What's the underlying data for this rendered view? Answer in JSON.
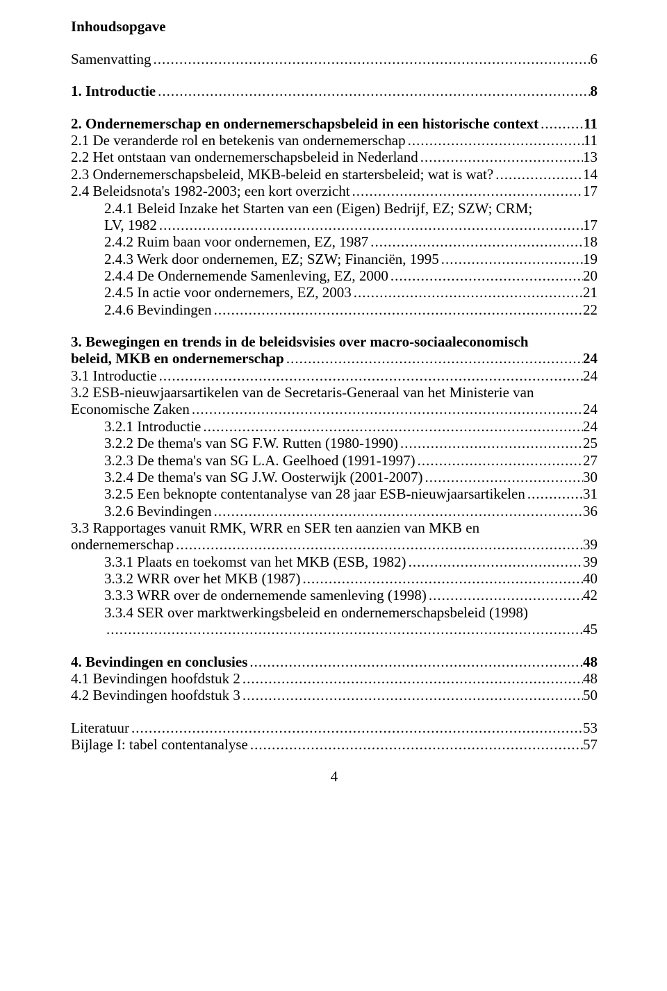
{
  "title": "Inhoudsopgave",
  "page_number": "4",
  "toc": [
    {
      "type": "line",
      "bold": false,
      "indent": 0,
      "label": "Samenvatting",
      "page": "6",
      "gap_after": true
    },
    {
      "type": "line",
      "bold": true,
      "indent": 0,
      "label": "1. Introductie",
      "page": "8",
      "gap_after": true
    },
    {
      "type": "line",
      "bold": true,
      "indent": 0,
      "label": "2. Ondernemerschap en ondernemerschapsbeleid in een historische context",
      "page": "11"
    },
    {
      "type": "line",
      "bold": false,
      "indent": 0,
      "label": "2.1 De veranderde rol en betekenis van ondernemerschap",
      "page": "11"
    },
    {
      "type": "line",
      "bold": false,
      "indent": 0,
      "label": "2.2 Het ontstaan van ondernemerschapsbeleid in Nederland",
      "page": "13"
    },
    {
      "type": "line",
      "bold": false,
      "indent": 0,
      "label": "2.3 Ondernemerschapsbeleid, MKB-beleid en startersbeleid; wat is wat?",
      "page": "14"
    },
    {
      "type": "line",
      "bold": false,
      "indent": 0,
      "label": "2.4 Beleidsnota's 1982-2003; een kort overzicht",
      "page": "17"
    },
    {
      "type": "wrap",
      "bold": false,
      "indent": 1,
      "label_first": "2.4.1 Beleid Inzake het Starten van een (Eigen) Bedrijf, EZ; SZW; CRM;",
      "label_last": "LV, 1982",
      "page": "17"
    },
    {
      "type": "line",
      "bold": false,
      "indent": 1,
      "label": "2.4.2 Ruim baan voor ondernemen, EZ, 1987",
      "page": "18"
    },
    {
      "type": "line",
      "bold": false,
      "indent": 1,
      "label": "2.4.3 Werk door ondernemen, EZ; SZW; Financiën, 1995",
      "page": "19"
    },
    {
      "type": "line",
      "bold": false,
      "indent": 1,
      "label": "2.4.4 De Ondernemende Samenleving, EZ, 2000",
      "page": "20"
    },
    {
      "type": "line",
      "bold": false,
      "indent": 1,
      "label": "2.4.5 In actie voor ondernemers, EZ, 2003",
      "page": "21"
    },
    {
      "type": "line",
      "bold": false,
      "indent": 1,
      "label": "2.4.6 Bevindingen",
      "page": "22",
      "gap_after": true
    },
    {
      "type": "wrap",
      "bold": true,
      "indent": 0,
      "label_first": "3. Bewegingen en trends in de beleidsvisies over macro-sociaaleconomisch",
      "label_last": "beleid, MKB en ondernemerschap",
      "page": "24"
    },
    {
      "type": "line",
      "bold": false,
      "indent": 0,
      "label": "3.1 Introductie",
      "page": "24"
    },
    {
      "type": "wrap",
      "bold": false,
      "indent": 0,
      "label_first": "3.2 ESB-nieuwjaarsartikelen van de Secretaris-Generaal van het Ministerie van",
      "label_last": "Economische Zaken",
      "page": "24"
    },
    {
      "type": "line",
      "bold": false,
      "indent": 1,
      "label": "3.2.1 Introductie",
      "page": "24"
    },
    {
      "type": "line",
      "bold": false,
      "indent": 1,
      "label": "3.2.2 De thema's van SG F.W. Rutten (1980-1990)",
      "page": "25"
    },
    {
      "type": "line",
      "bold": false,
      "indent": 1,
      "label": "3.2.3 De thema's van SG L.A. Geelhoed (1991-1997)",
      "page": "27"
    },
    {
      "type": "line",
      "bold": false,
      "indent": 1,
      "label": "3.2.4 De thema's van SG J.W. Oosterwijk (2001-2007)",
      "page": "30"
    },
    {
      "type": "line",
      "bold": false,
      "indent": 1,
      "label": "3.2.5 Een beknopte contentanalyse van 28 jaar ESB-nieuwjaarsartikelen",
      "page": "31"
    },
    {
      "type": "line",
      "bold": false,
      "indent": 1,
      "label": "3.2.6 Bevindingen",
      "page": "36"
    },
    {
      "type": "wrap",
      "bold": false,
      "indent": 0,
      "label_first": "3.3 Rapportages vanuit RMK, WRR en SER ten aanzien van MKB en",
      "label_last": "ondernemerschap",
      "page": "39"
    },
    {
      "type": "line",
      "bold": false,
      "indent": 1,
      "label": "3.3.1 Plaats en toekomst van het MKB (ESB, 1982)",
      "page": "39"
    },
    {
      "type": "line",
      "bold": false,
      "indent": 1,
      "label": "3.3.2 WRR over het MKB (1987)",
      "page": "40"
    },
    {
      "type": "line",
      "bold": false,
      "indent": 1,
      "label": "3.3.3 WRR over de ondernemende samenleving (1998)",
      "page": "42"
    },
    {
      "type": "wrap",
      "bold": false,
      "indent": 1,
      "label_first": "3.3.4 SER over marktwerkingsbeleid en ondernemerschapsbeleid (1998)",
      "label_last": "",
      "page": "45",
      "gap_after": true
    },
    {
      "type": "line",
      "bold": true,
      "indent": 0,
      "label": "4. Bevindingen en conclusies",
      "page": "48"
    },
    {
      "type": "line",
      "bold": false,
      "indent": 0,
      "label": "4.1 Bevindingen hoofdstuk 2",
      "page": "48"
    },
    {
      "type": "line",
      "bold": false,
      "indent": 0,
      "label": "4.2 Bevindingen hoofdstuk 3",
      "page": "50",
      "gap_after": true
    },
    {
      "type": "line",
      "bold": false,
      "indent": 0,
      "label": "Literatuur",
      "page": "53"
    },
    {
      "type": "line",
      "bold": false,
      "indent": 0,
      "label": "Bijlage I: tabel contentanalyse",
      "page": "57"
    }
  ]
}
